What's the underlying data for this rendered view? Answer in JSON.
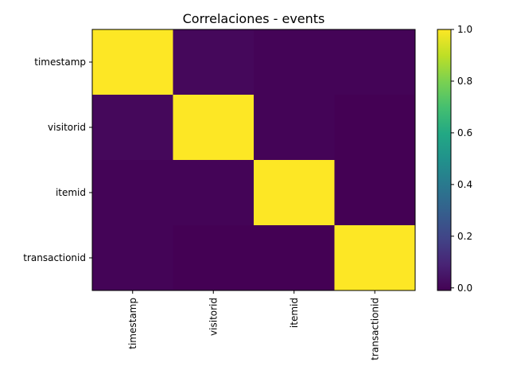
{
  "chart_data": {
    "type": "heatmap",
    "title": "Correlaciones - events",
    "xlabel": "",
    "ylabel": "",
    "rows": [
      "timestamp",
      "visitorid",
      "itemid",
      "transactionid"
    ],
    "columns": [
      "timestamp",
      "visitorid",
      "itemid",
      "transactionid"
    ],
    "values": [
      [
        1.0,
        0.01,
        0.0,
        0.0
      ],
      [
        0.01,
        1.0,
        0.0,
        -0.01
      ],
      [
        0.0,
        0.0,
        1.0,
        -0.01
      ],
      [
        0.0,
        -0.01,
        -0.01,
        1.0
      ]
    ],
    "colorbar": {
      "min": -0.01,
      "max": 1.0,
      "ticks": [
        "0.0",
        "0.2",
        "0.4",
        "0.6",
        "0.8",
        "1.0"
      ],
      "tick_values": [
        0.0,
        0.2,
        0.4,
        0.6,
        0.8,
        1.0
      ],
      "colormap": "viridis"
    },
    "grid": false,
    "x_tick_rotation": "vertical"
  }
}
